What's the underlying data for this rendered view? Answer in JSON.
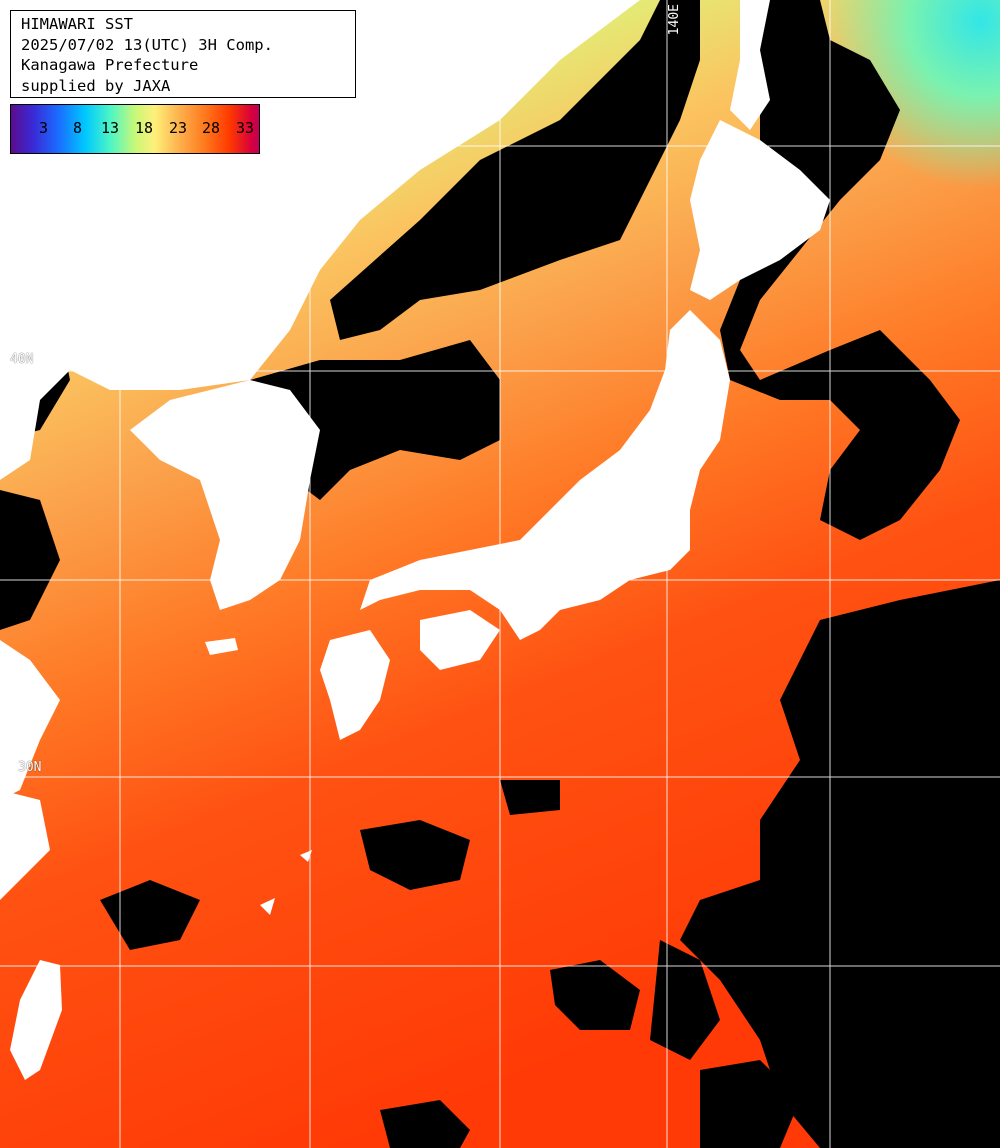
{
  "map": {
    "title_lines": [
      "HIMAWARI SST",
      "2025/07/02 13(UTC) 3H Comp.",
      "Kanagawa Prefecture",
      "supplied by JAXA"
    ],
    "colorbar": {
      "ticks": [
        "3",
        "8",
        "13",
        "18",
        "23",
        "28",
        "33"
      ],
      "colors": [
        "#5a0c8e",
        "#1a6cff",
        "#00c8ff",
        "#4cf6c6",
        "#fef07a",
        "#fdb04c",
        "#ff3a00",
        "#d8003c"
      ]
    },
    "grid_labels": {
      "lon_140": "140E",
      "lat_40": "40N",
      "lat_30": "30N"
    },
    "colors": {
      "land": "#ffffff",
      "cloud": "#000000",
      "sst_warm": "#ff4a0a",
      "sst_mid": "#ff9a3a",
      "sst_cool": "#d8f070",
      "sst_cold": "#5ef0c0",
      "grid": "#ffffff"
    }
  }
}
